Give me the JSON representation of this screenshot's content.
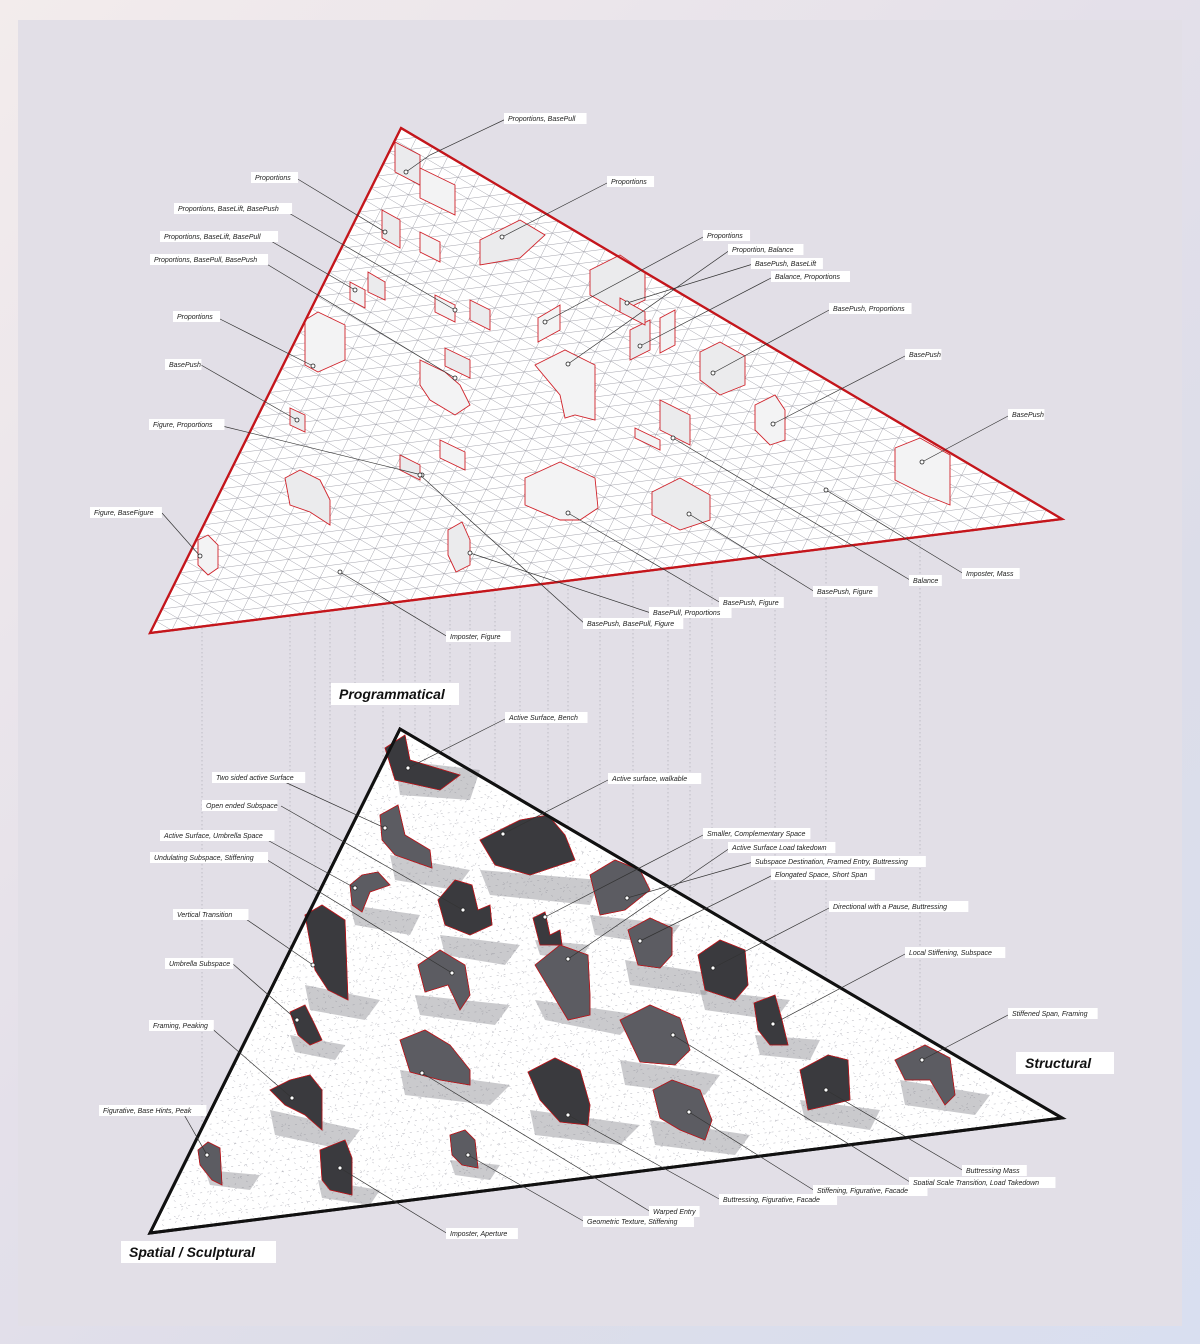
{
  "titles": {
    "programmatical": "Programmatical",
    "structural": "Structural",
    "spatial": "Spatial / Sculptural"
  },
  "programmatical_labels": [
    "Proportions, BasePull",
    "Proportions",
    "Proportions, BaseLift, BasePush",
    "Proportions, BaseLift, BasePull",
    "Proportions, BasePull, BasePush",
    "Proportions",
    "BasePush",
    "Figure, Proportions",
    "Figure, BaseFigure",
    "Proportions",
    "Proportions",
    "Proportion, Balance",
    "BasePush, BaseLift",
    "Balance, Proportions",
    "BasePush, Proportions",
    "BasePush",
    "BasePush",
    "Imposter, Mass",
    "Balance",
    "BasePush, Figure",
    "BasePush, Figure",
    "BasePull, Proportions",
    "BasePush, BasePull, Figure",
    "Imposter, Figure"
  ],
  "structural_labels": [
    "Active Surface, Bench",
    "Two sided active Surface",
    "Active surface, walkable",
    "Open ended Subspace",
    "Active Surface, Umbrella Space",
    "Undulating Subspace, Stiffening",
    "Smaller, Complementary Space",
    "Active Surface Load takedown",
    "Subspace Destination, Framed Entry, Buttressing",
    "Elongated Space, Short Span",
    "Directional with a Pause, Buttressing",
    "Vertical Transition",
    "Umbrella Subspace",
    "Local Stiffening, Subspace",
    "Stiffened Span, Framing",
    "Framing, Peaking",
    "Figurative, Base Hints, Peak",
    "Buttressing Mass",
    "Spatial Scale Transition, Load Takedown",
    "Stiffening, Figurative, Facade",
    "Buttressing, Figurative, Facade",
    "Warped Entry",
    "Geometric Texture, Stiffening",
    "Imposter, Aperture"
  ]
}
